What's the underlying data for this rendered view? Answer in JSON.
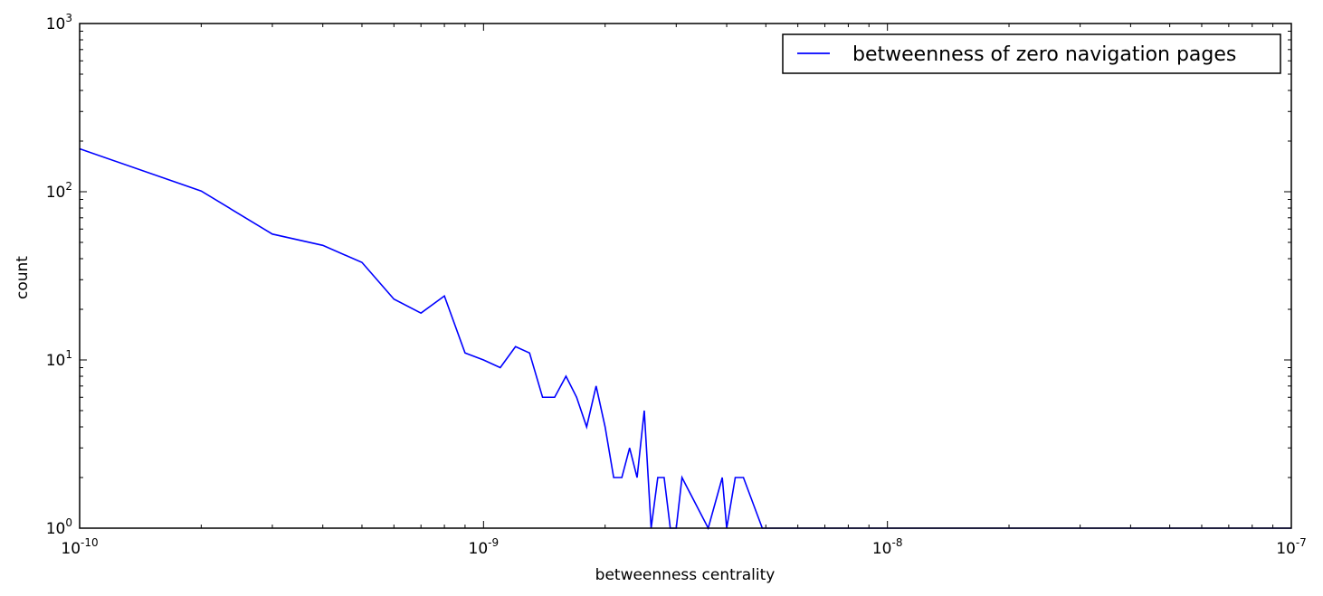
{
  "chart_data": {
    "type": "line",
    "xlabel": "betweenness centrality",
    "ylabel": "count",
    "xscale": "log",
    "yscale": "log",
    "xlim": [
      1e-10,
      1e-07
    ],
    "ylim": [
      1,
      1000
    ],
    "x_ticks": [
      {
        "base": "10",
        "exp": "-10",
        "value": 1e-10
      },
      {
        "base": "10",
        "exp": "-9",
        "value": 1e-09
      },
      {
        "base": "10",
        "exp": "-8",
        "value": 1e-08
      },
      {
        "base": "10",
        "exp": "-7",
        "value": 1e-07
      }
    ],
    "y_ticks": [
      {
        "base": "10",
        "exp": "0",
        "value": 1
      },
      {
        "base": "10",
        "exp": "1",
        "value": 10
      },
      {
        "base": "10",
        "exp": "2",
        "value": 100
      },
      {
        "base": "10",
        "exp": "3",
        "value": 1000
      }
    ],
    "grid": false,
    "legend_position": "top-right",
    "series": [
      {
        "name": "betweenness of zero navigation pages",
        "color": "#0000ff",
        "points": [
          [
            1e-10,
            180
          ],
          [
            2e-10,
            101
          ],
          [
            3e-10,
            56
          ],
          [
            4e-10,
            48
          ],
          [
            5e-10,
            38
          ],
          [
            6e-10,
            23
          ],
          [
            7e-10,
            19
          ],
          [
            8e-10,
            24
          ],
          [
            9e-10,
            11
          ],
          [
            1e-09,
            10
          ],
          [
            1.1e-09,
            9
          ],
          [
            1.2e-09,
            12
          ],
          [
            1.3e-09,
            11
          ],
          [
            1.4e-09,
            6
          ],
          [
            1.5e-09,
            6
          ],
          [
            1.6e-09,
            8
          ],
          [
            1.7e-09,
            6
          ],
          [
            1.8e-09,
            4
          ],
          [
            1.9e-09,
            7
          ],
          [
            2e-09,
            4
          ],
          [
            2.1e-09,
            2
          ],
          [
            2.2e-09,
            2
          ],
          [
            2.3e-09,
            3
          ],
          [
            2.4e-09,
            2
          ],
          [
            2.5e-09,
            5
          ],
          [
            2.6e-09,
            1
          ],
          [
            2.7e-09,
            2
          ],
          [
            2.8e-09,
            2
          ],
          [
            2.9e-09,
            1
          ],
          [
            3e-09,
            1
          ],
          [
            3.1e-09,
            2
          ],
          [
            3.6e-09,
            1
          ],
          [
            3.9e-09,
            2
          ],
          [
            4e-09,
            1
          ],
          [
            4.2e-09,
            2
          ],
          [
            4.4e-09,
            2
          ],
          [
            4.9e-09,
            1
          ],
          [
            1e-07,
            1
          ]
        ]
      }
    ]
  }
}
